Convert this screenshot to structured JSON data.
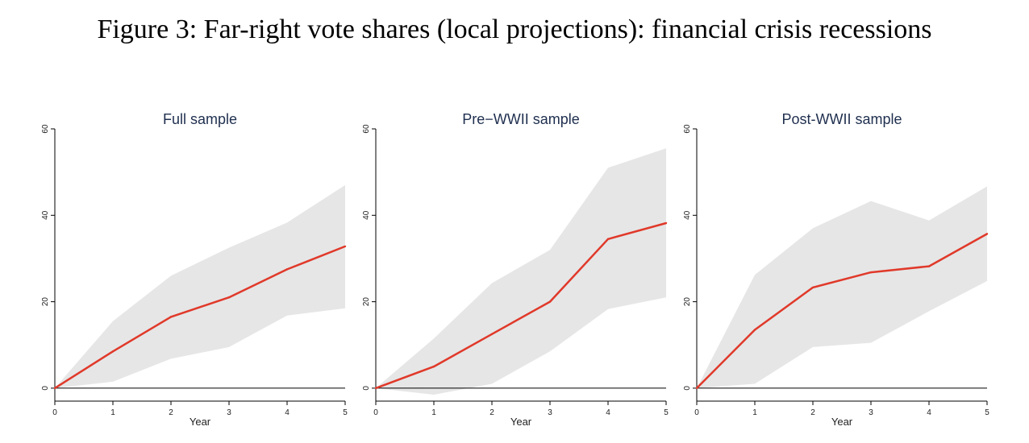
{
  "figure": {
    "title": "Figure 3: Far-right vote shares (local projections): financial crisis recessions"
  },
  "colors": {
    "line": "#e0392a",
    "band": "#e6e6e6",
    "axis": "#000000",
    "zero_line": "#000000"
  },
  "chart_data": [
    {
      "type": "line",
      "title": "Full sample",
      "xlabel": "Year",
      "ylabel": "",
      "x": [
        0,
        1,
        2,
        3,
        4,
        5
      ],
      "xticks": [
        0,
        1,
        2,
        3,
        4,
        5
      ],
      "yticks": [
        0,
        20,
        40,
        60
      ],
      "xlim": [
        0,
        5
      ],
      "ylim": [
        -3,
        60
      ],
      "series": [
        {
          "values": [
            0,
            8.5,
            16.5,
            21.0,
            27.5,
            32.8
          ]
        }
      ],
      "band": {
        "lower": [
          0,
          1.5,
          6.8,
          9.5,
          16.8,
          18.5
        ],
        "upper": [
          0,
          15.5,
          26.0,
          32.5,
          38.3,
          47.0
        ]
      },
      "grid": false
    },
    {
      "type": "line",
      "title": "Pre−WWII sample",
      "xlabel": "Year",
      "ylabel": "",
      "x": [
        0,
        1,
        2,
        3,
        4,
        5
      ],
      "xticks": [
        0,
        1,
        2,
        3,
        4,
        5
      ],
      "yticks": [
        0,
        20,
        40,
        60
      ],
      "xlim": [
        0,
        5
      ],
      "ylim": [
        -3,
        60
      ],
      "series": [
        {
          "values": [
            0,
            5.0,
            12.5,
            20.0,
            34.5,
            38.2
          ]
        }
      ],
      "band": {
        "lower": [
          0,
          -1.5,
          1.0,
          8.5,
          18.3,
          21.0
        ],
        "upper": [
          0,
          11.5,
          24.3,
          32.0,
          51.0,
          55.5
        ]
      },
      "grid": false
    },
    {
      "type": "line",
      "title": "Post-WWII sample",
      "xlabel": "Year",
      "ylabel": "",
      "x": [
        0,
        1,
        2,
        3,
        4,
        5
      ],
      "xticks": [
        0,
        1,
        2,
        3,
        4,
        5
      ],
      "yticks": [
        0,
        20,
        40,
        60
      ],
      "xlim": [
        0,
        5
      ],
      "ylim": [
        -3,
        60
      ],
      "series": [
        {
          "values": [
            0,
            13.5,
            23.3,
            26.8,
            28.2,
            35.7
          ]
        }
      ],
      "band": {
        "lower": [
          0,
          1.0,
          9.5,
          10.5,
          17.8,
          24.8
        ],
        "upper": [
          0,
          26.2,
          37.0,
          43.3,
          38.8,
          46.7
        ]
      },
      "grid": false
    }
  ]
}
